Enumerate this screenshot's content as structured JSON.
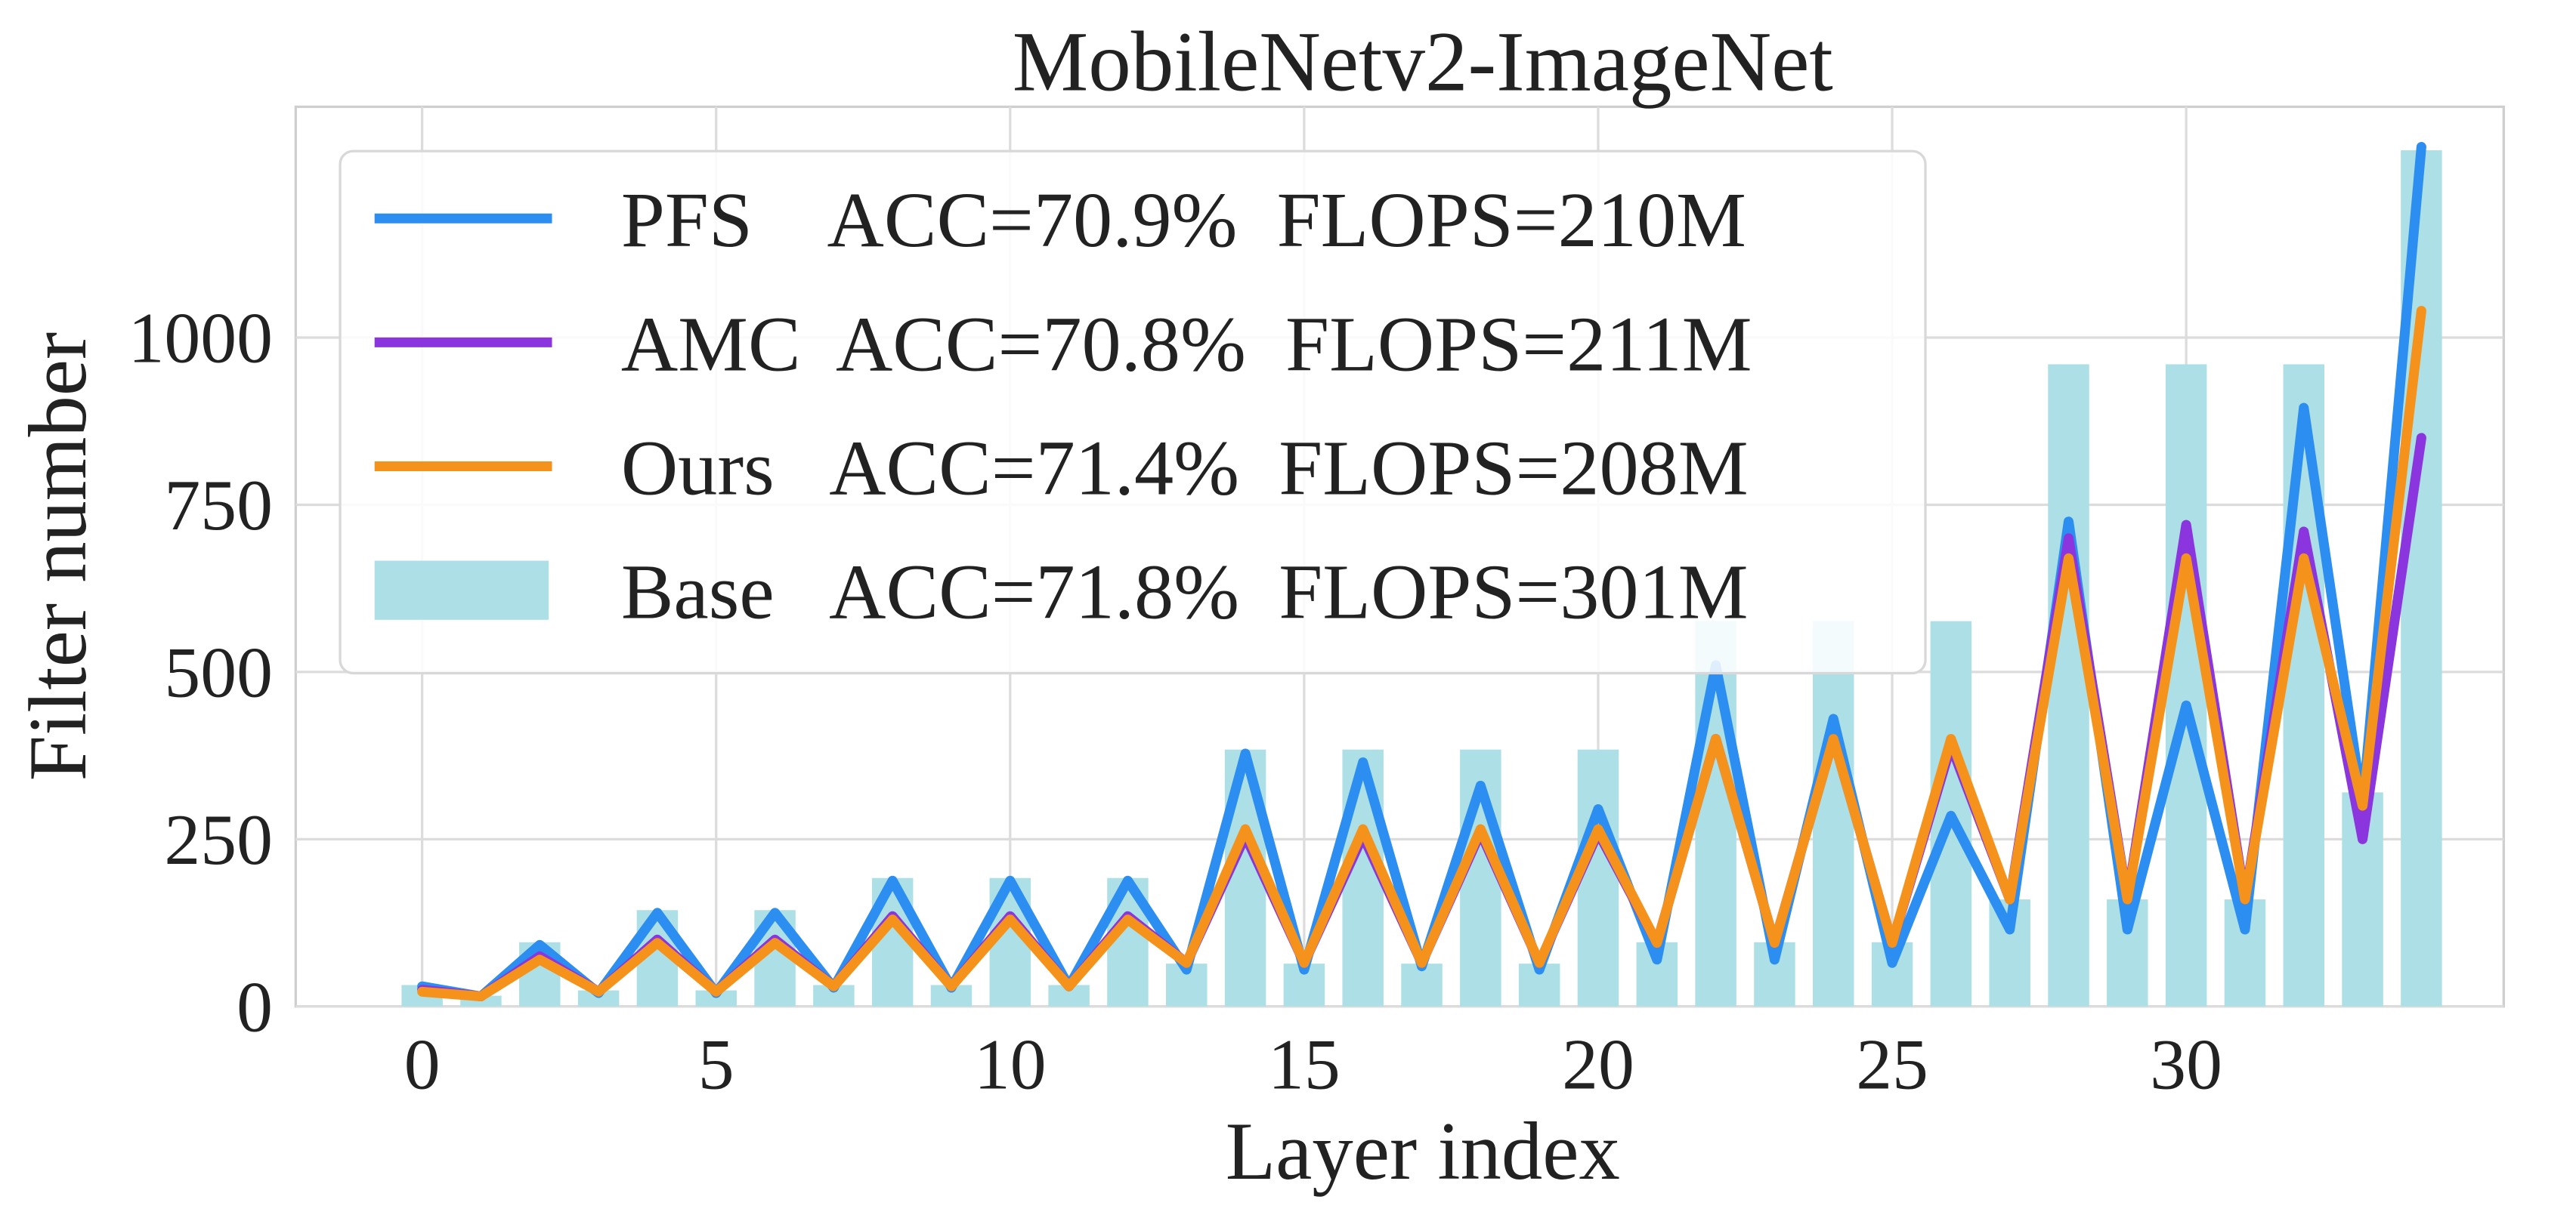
{
  "chart_data": {
    "type": "bar",
    "title": "MobileNetv2-ImageNet",
    "x_label": "Layer index",
    "y_label": "Filter number",
    "x": [
      0,
      1,
      2,
      3,
      4,
      5,
      6,
      7,
      8,
      9,
      10,
      11,
      12,
      13,
      14,
      15,
      16,
      17,
      18,
      19,
      20,
      21,
      22,
      23,
      24,
      25,
      26,
      27,
      28,
      29,
      30,
      31,
      32,
      33,
      34
    ],
    "xlim": [
      -2.15,
      35.4
    ],
    "xticks": [
      0,
      5,
      10,
      15,
      20,
      25,
      30
    ],
    "ylim": [
      0,
      1345
    ],
    "yticks": [
      0,
      250,
      500,
      750,
      1000
    ],
    "grid": true,
    "legend": "upper left",
    "series": [
      {
        "name": "PFS    ACC=70.9%  FLOPS=210M",
        "type": "line",
        "color": "#2b8ef0",
        "values": [
          30,
          15,
          92,
          20,
          140,
          20,
          140,
          28,
          188,
          28,
          188,
          30,
          188,
          55,
          378,
          55,
          365,
          60,
          330,
          55,
          295,
          70,
          510,
          70,
          430,
          65,
          285,
          115,
          725,
          115,
          450,
          115,
          895,
          300,
          1285
        ]
      },
      {
        "name": "AMC  ACC=70.8%  FLOPS=211M",
        "type": "line",
        "color": "#8a35de",
        "values": [
          25,
          15,
          75,
          22,
          100,
          22,
          100,
          30,
          135,
          30,
          135,
          30,
          135,
          65,
          255,
          65,
          255,
          65,
          260,
          65,
          260,
          95,
          400,
          95,
          400,
          95,
          390,
          160,
          700,
          160,
          720,
          160,
          710,
          250,
          850
        ]
      },
      {
        "name": "Ours   ACC=71.4%  FLOPS=208M",
        "type": "line",
        "color": "#f5921b",
        "values": [
          22,
          15,
          70,
          22,
          95,
          22,
          95,
          30,
          130,
          30,
          130,
          30,
          130,
          65,
          265,
          65,
          265,
          65,
          265,
          65,
          265,
          95,
          400,
          95,
          400,
          95,
          400,
          160,
          670,
          160,
          670,
          160,
          670,
          300,
          1040
        ]
      },
      {
        "name": "Base   ACC=71.8%  FLOPS=301M",
        "type": "bar",
        "color": "#ace0e6",
        "values": [
          32,
          16,
          96,
          24,
          144,
          24,
          144,
          32,
          192,
          32,
          192,
          32,
          192,
          64,
          384,
          64,
          384,
          64,
          384,
          64,
          384,
          96,
          576,
          96,
          576,
          96,
          576,
          160,
          960,
          160,
          960,
          160,
          960,
          320,
          1280
        ]
      }
    ]
  }
}
